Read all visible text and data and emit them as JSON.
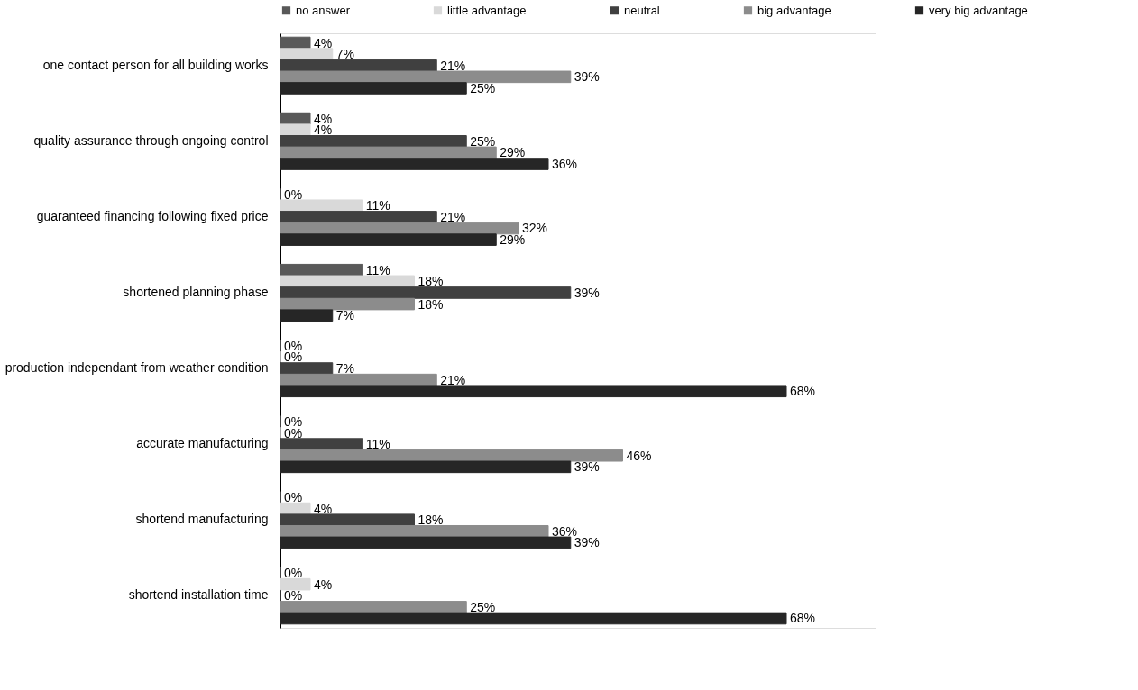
{
  "chart_data": {
    "type": "bar",
    "orientation": "horizontal",
    "categories": [
      "one contact person for all building works",
      "quality assurance through ongoing control",
      "guaranteed financing following fixed price",
      "shortened planning phase",
      "production independant from weather condition",
      "accurate manufacturing",
      "shortend manufacturing",
      "shortend installation time"
    ],
    "series": [
      {
        "name": "no answer",
        "color": "#595959",
        "values": [
          4,
          4,
          0,
          11,
          0,
          0,
          0,
          0
        ],
        "value_labels": [
          "4%",
          "4%",
          "0%",
          "11%",
          "0%",
          "0%",
          "0%",
          "0%"
        ]
      },
      {
        "name": "little advantage",
        "color": "#d9d9d9",
        "values": [
          7,
          4,
          11,
          18,
          0,
          0,
          4,
          4
        ],
        "value_labels": [
          "7%",
          "4%",
          "11%",
          "18%",
          "0%",
          "0%",
          "4%",
          "4%"
        ]
      },
      {
        "name": "neutral",
        "color": "#404040",
        "values": [
          21,
          25,
          21,
          39,
          7,
          11,
          18,
          0
        ],
        "value_labels": [
          "21%",
          "25%",
          "21%",
          "39%",
          "7%",
          "11%",
          "18%",
          "0%"
        ]
      },
      {
        "name": "big advantage",
        "color": "#8c8c8c",
        "values": [
          39,
          29,
          32,
          18,
          21,
          46,
          36,
          25
        ],
        "value_labels": [
          "39%",
          "29%",
          "32%",
          "18%",
          "21%",
          "46%",
          "36%",
          "25%"
        ]
      },
      {
        "name": "very big advantage",
        "color": "#262626",
        "values": [
          25,
          36,
          29,
          7,
          68,
          39,
          39,
          68
        ],
        "value_labels": [
          "25%",
          "36%",
          "29%",
          "7%",
          "68%",
          "39%",
          "39%",
          "68%"
        ]
      }
    ],
    "xlim": [
      0,
      80
    ],
    "tick_labels": "y",
    "grid": false,
    "legend": "top"
  }
}
